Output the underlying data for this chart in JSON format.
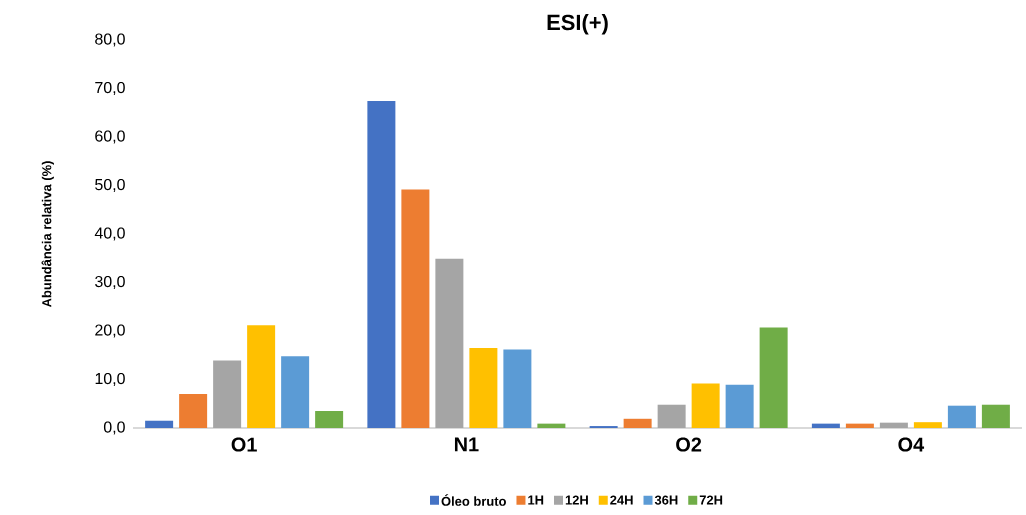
{
  "chart_data": {
    "type": "bar",
    "title": "ESI(+)",
    "ylabel": "Abundância relativa (%)",
    "categories": [
      "O1",
      "N1",
      "O2",
      "O4"
    ],
    "series": [
      {
        "name": "Óleo bruto",
        "color": "#4472c4",
        "values": [
          1.5,
          67.4,
          0.4,
          0.9
        ]
      },
      {
        "name": "1H",
        "color": "#ed7d31",
        "values": [
          7.0,
          49.2,
          1.9,
          0.9
        ]
      },
      {
        "name": "12H",
        "color": "#a5a5a5",
        "values": [
          13.9,
          34.9,
          4.8,
          1.1
        ]
      },
      {
        "name": "24H",
        "color": "#ffc000",
        "values": [
          21.2,
          16.5,
          9.2,
          1.2
        ]
      },
      {
        "name": "36H",
        "color": "#5b9bd5",
        "values": [
          14.8,
          16.2,
          8.9,
          4.6
        ]
      },
      {
        "name": "72H",
        "color": "#70ad47",
        "values": [
          3.5,
          0.9,
          20.7,
          4.8
        ]
      }
    ],
    "ylim": [
      0,
      80
    ],
    "yticks": [
      {
        "value": 0,
        "label": "0,0"
      },
      {
        "value": 10,
        "label": "10,0"
      },
      {
        "value": 20,
        "label": "20,0"
      },
      {
        "value": 30,
        "label": "30,0"
      },
      {
        "value": 40,
        "label": "40,0"
      },
      {
        "value": 50,
        "label": "50,0"
      },
      {
        "value": 60,
        "label": "60,0"
      },
      {
        "value": 70,
        "label": "70,0"
      },
      {
        "value": 80,
        "label": "80,0"
      }
    ],
    "legend": "bottom",
    "grid": false
  }
}
